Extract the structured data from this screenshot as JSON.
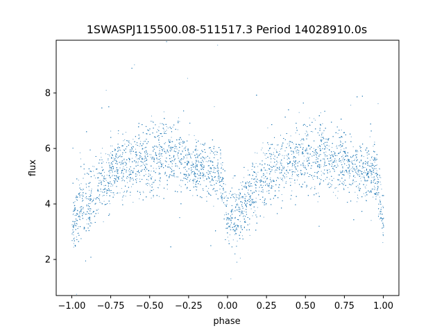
{
  "chart_data": {
    "type": "scatter",
    "title": "1SWASPJ115500.08-511517.3 Period 14028910.0s",
    "xlabel": "phase",
    "ylabel": "flux",
    "xlim": [
      -1.1,
      1.1
    ],
    "ylim": [
      0.7,
      9.9
    ],
    "x_ticks": [
      -1.0,
      -0.75,
      -0.5,
      -0.25,
      0.0,
      0.25,
      0.5,
      0.75,
      1.0
    ],
    "x_tick_labels": [
      "−1.00",
      "−0.75",
      "−0.50",
      "−0.25",
      "0.00",
      "0.25",
      "0.50",
      "0.75",
      "1.00"
    ],
    "y_ticks": [
      2,
      4,
      6,
      8
    ],
    "y_tick_labels": [
      "2",
      "4",
      "6",
      "8"
    ],
    "grid": false,
    "legend": "none",
    "marker_color": "#1f77b4",
    "series": [
      {
        "name": "",
        "profile": {
          "phase": [
            -1.0,
            -0.95,
            -0.9,
            -0.85,
            -0.8,
            -0.75,
            -0.7,
            -0.65,
            -0.6,
            -0.55,
            -0.5,
            -0.45,
            -0.4,
            -0.35,
            -0.3,
            -0.25,
            -0.2,
            -0.15,
            -0.1,
            -0.05,
            0.0,
            0.05,
            0.1,
            0.15,
            0.2,
            0.25,
            0.3,
            0.35,
            0.4,
            0.45,
            0.5,
            0.55,
            0.6,
            0.65,
            0.7,
            0.75,
            0.8,
            0.85,
            0.9,
            0.95,
            1.0
          ],
          "median_flux": [
            3.2,
            3.9,
            4.1,
            4.4,
            4.8,
            5.1,
            5.3,
            5.4,
            5.5,
            5.6,
            5.6,
            5.7,
            5.8,
            5.7,
            5.6,
            5.5,
            5.4,
            5.3,
            5.2,
            5.2,
            3.3,
            3.6,
            4.0,
            4.4,
            4.8,
            5.1,
            5.3,
            5.4,
            5.5,
            5.6,
            5.6,
            5.7,
            5.8,
            5.7,
            5.6,
            5.5,
            5.4,
            5.3,
            5.2,
            5.2,
            3.2
          ],
          "spread": [
            0.5,
            0.7,
            0.6,
            0.6,
            0.6,
            0.6,
            0.6,
            0.6,
            0.6,
            0.6,
            0.7,
            0.7,
            0.6,
            0.6,
            0.6,
            0.6,
            0.5,
            0.5,
            0.5,
            0.5,
            0.5,
            0.6,
            0.6,
            0.6,
            0.6,
            0.6,
            0.6,
            0.6,
            0.6,
            0.6,
            0.7,
            0.7,
            0.6,
            0.6,
            0.6,
            0.6,
            0.5,
            0.5,
            0.5,
            0.5,
            0.5
          ]
        }
      }
    ]
  }
}
